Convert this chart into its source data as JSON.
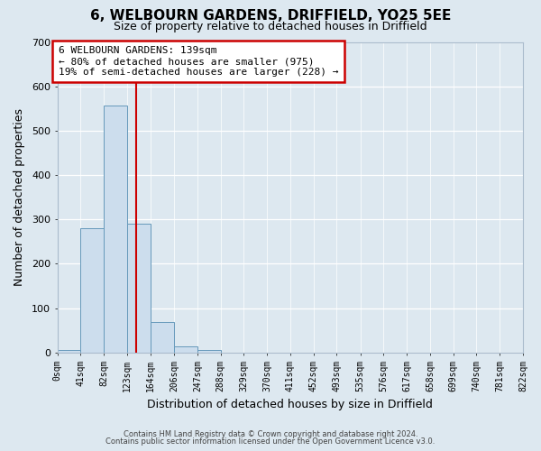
{
  "title": "6, WELBOURN GARDENS, DRIFFIELD, YO25 5EE",
  "subtitle": "Size of property relative to detached houses in Driffield",
  "xlabel": "Distribution of detached houses by size in Driffield",
  "ylabel": "Number of detached properties",
  "footnote1": "Contains HM Land Registry data © Crown copyright and database right 2024.",
  "footnote2": "Contains public sector information licensed under the Open Government Licence v3.0.",
  "bin_edges": [
    0,
    41,
    82,
    123,
    164,
    206,
    247,
    288,
    329,
    370,
    411,
    452,
    493,
    535,
    576,
    617,
    658,
    699,
    740,
    781,
    822
  ],
  "bin_labels": [
    "0sqm",
    "41sqm",
    "82sqm",
    "123sqm",
    "164sqm",
    "206sqm",
    "247sqm",
    "288sqm",
    "329sqm",
    "370sqm",
    "411sqm",
    "452sqm",
    "493sqm",
    "535sqm",
    "576sqm",
    "617sqm",
    "658sqm",
    "699sqm",
    "740sqm",
    "781sqm",
    "822sqm"
  ],
  "counts": [
    5,
    280,
    557,
    290,
    68,
    14,
    5,
    0,
    0,
    0,
    0,
    0,
    0,
    0,
    0,
    0,
    0,
    0,
    0,
    0
  ],
  "bar_color": "#ccdded",
  "bar_edge_color": "#6699bb",
  "vline_color": "#cc0000",
  "vline_x": 139,
  "ylim": [
    0,
    700
  ],
  "yticks": [
    0,
    100,
    200,
    300,
    400,
    500,
    600,
    700
  ],
  "annotation_title": "6 WELBOURN GARDENS: 139sqm",
  "annotation_line1": "← 80% of detached houses are smaller (975)",
  "annotation_line2": "19% of semi-detached houses are larger (228) →",
  "annotation_box_color": "#ffffff",
  "annotation_box_edge": "#cc0000",
  "fig_bg_color": "#dde8f0",
  "ax_bg_color": "#dde8f0",
  "grid_color": "#ffffff"
}
